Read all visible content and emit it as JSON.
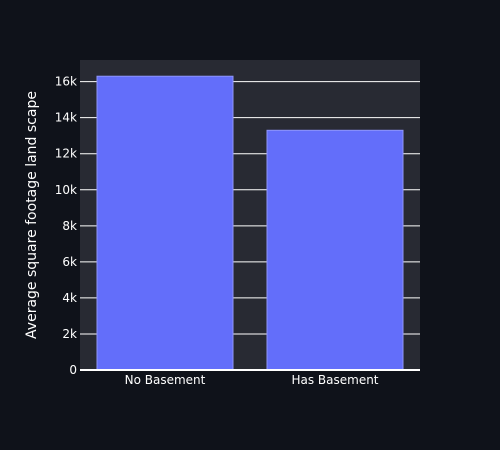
{
  "colors": {
    "page_background": "#0f121a",
    "plot_background": "#282a33",
    "grid": "#ffffff",
    "bar_fill": "#636efa",
    "bar_stroke": "#8f96fb",
    "text": "#ffffff"
  },
  "chart_data": {
    "type": "bar",
    "title": "",
    "xlabel": "",
    "ylabel": "Average square footage land scape",
    "categories": [
      "No Basement",
      "Has Basement"
    ],
    "values": [
      16300,
      13300
    ],
    "ylim": [
      0,
      17200
    ],
    "yticks": [
      0,
      2000,
      4000,
      6000,
      8000,
      10000,
      12000,
      14000,
      16000
    ],
    "ytick_labels": [
      "0",
      "2k",
      "4k",
      "6k",
      "8k",
      "10k",
      "12k",
      "14k",
      "16k"
    ],
    "grid": true,
    "legend": "none"
  }
}
